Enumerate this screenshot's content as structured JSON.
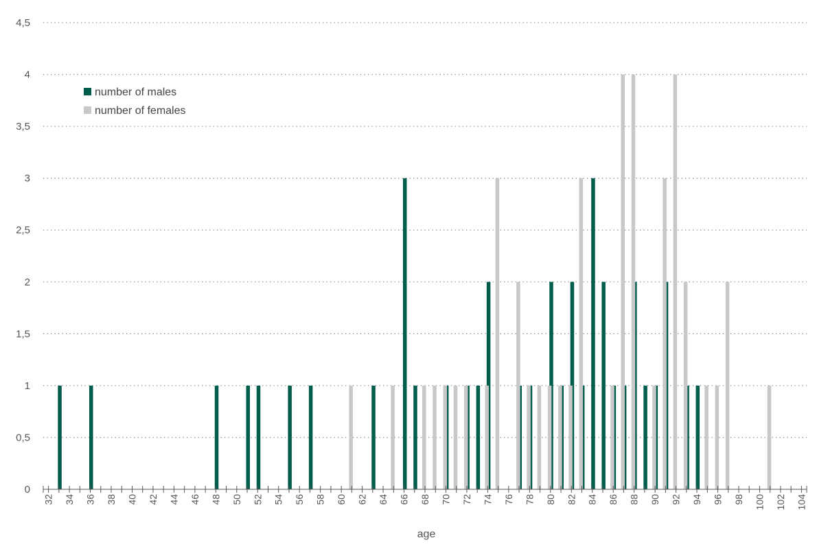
{
  "chart_data": {
    "type": "bar",
    "xlabel": "age",
    "ylabel": "",
    "ylim": [
      0,
      4.5
    ],
    "xlim": [
      32,
      104
    ],
    "y_ticks": [
      "0",
      "0,5",
      "1",
      "1,5",
      "2",
      "2,5",
      "3",
      "3,5",
      "4",
      "4,5"
    ],
    "y_tick_values": [
      0,
      0.5,
      1,
      1.5,
      2,
      2.5,
      3,
      3.5,
      4,
      4.5
    ],
    "x_ticks": [
      "32",
      "34",
      "36",
      "38",
      "40",
      "42",
      "44",
      "46",
      "48",
      "50",
      "52",
      "54",
      "56",
      "58",
      "60",
      "62",
      "64",
      "66",
      "68",
      "70",
      "72",
      "74",
      "76",
      "78",
      "80",
      "82",
      "84",
      "86",
      "88",
      "90",
      "92",
      "94",
      "96",
      "98",
      "100",
      "102",
      "104"
    ],
    "grid": "horizontal dotted",
    "legend_position": "top-left",
    "series": [
      {
        "name": "number of males",
        "color": "#005c4b",
        "points": [
          {
            "x": 33,
            "y": 1
          },
          {
            "x": 36,
            "y": 1
          },
          {
            "x": 48,
            "y": 1
          },
          {
            "x": 51,
            "y": 1
          },
          {
            "x": 52,
            "y": 1
          },
          {
            "x": 55,
            "y": 1
          },
          {
            "x": 57,
            "y": 1
          },
          {
            "x": 63,
            "y": 1
          },
          {
            "x": 66,
            "y": 3
          },
          {
            "x": 67,
            "y": 1
          },
          {
            "x": 70,
            "y": 1
          },
          {
            "x": 72,
            "y": 1
          },
          {
            "x": 73,
            "y": 1
          },
          {
            "x": 74,
            "y": 2
          },
          {
            "x": 77,
            "y": 1
          },
          {
            "x": 78,
            "y": 1
          },
          {
            "x": 80,
            "y": 2
          },
          {
            "x": 81,
            "y": 1
          },
          {
            "x": 82,
            "y": 2
          },
          {
            "x": 83,
            "y": 1
          },
          {
            "x": 84,
            "y": 3
          },
          {
            "x": 85,
            "y": 2
          },
          {
            "x": 86,
            "y": 1
          },
          {
            "x": 87,
            "y": 1
          },
          {
            "x": 88,
            "y": 2
          },
          {
            "x": 89,
            "y": 1
          },
          {
            "x": 90,
            "y": 1
          },
          {
            "x": 91,
            "y": 2
          },
          {
            "x": 93,
            "y": 1
          },
          {
            "x": 94,
            "y": 1
          }
        ]
      },
      {
        "name": "number of females",
        "color": "#c8c8c8",
        "points": [
          {
            "x": 61,
            "y": 1
          },
          {
            "x": 65,
            "y": 1
          },
          {
            "x": 68,
            "y": 1
          },
          {
            "x": 69,
            "y": 1
          },
          {
            "x": 70,
            "y": 1
          },
          {
            "x": 71,
            "y": 1
          },
          {
            "x": 72,
            "y": 1
          },
          {
            "x": 74,
            "y": 1
          },
          {
            "x": 75,
            "y": 3
          },
          {
            "x": 77,
            "y": 2
          },
          {
            "x": 78,
            "y": 1
          },
          {
            "x": 79,
            "y": 1
          },
          {
            "x": 80,
            "y": 1
          },
          {
            "x": 81,
            "y": 1
          },
          {
            "x": 82,
            "y": 1
          },
          {
            "x": 83,
            "y": 3
          },
          {
            "x": 86,
            "y": 1
          },
          {
            "x": 87,
            "y": 4
          },
          {
            "x": 88,
            "y": 4
          },
          {
            "x": 90,
            "y": 1
          },
          {
            "x": 91,
            "y": 3
          },
          {
            "x": 92,
            "y": 4
          },
          {
            "x": 93,
            "y": 2
          },
          {
            "x": 95,
            "y": 1
          },
          {
            "x": 96,
            "y": 1
          },
          {
            "x": 97,
            "y": 2
          },
          {
            "x": 101,
            "y": 1
          }
        ]
      }
    ]
  }
}
